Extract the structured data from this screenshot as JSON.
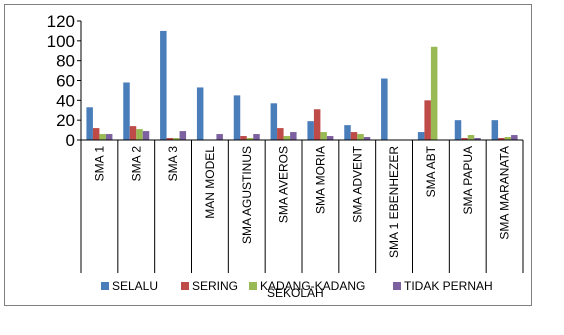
{
  "chart_data": {
    "type": "bar",
    "title": "",
    "xlabel": "SEKOLAH",
    "ylabel": "",
    "ylim": [
      0,
      120
    ],
    "yticks": [
      0,
      20,
      40,
      60,
      80,
      100,
      120
    ],
    "grid": false,
    "legend_position": "bottom",
    "categories": [
      "SMA 1",
      "SMA 2",
      "SMA 3",
      "MAN MODEL",
      "SMA AGUSTINUS",
      "SMA AVEROS",
      "SMA MORIA",
      "SMA ADVENT",
      "SMA 1 EBENHEZER",
      "SMA ABT",
      "SMA PAPUA",
      "SMA MARANATA"
    ],
    "series": [
      {
        "name": "SELALU",
        "color": "#4a7ebb",
        "values": [
          33,
          58,
          110,
          53,
          45,
          37,
          19,
          15,
          62,
          8,
          20,
          20
        ]
      },
      {
        "name": "SERING",
        "color": "#be4b48",
        "values": [
          12,
          14,
          2,
          0,
          4,
          12,
          31,
          8,
          0,
          40,
          2,
          2
        ]
      },
      {
        "name": "KADANG-KADANG",
        "color": "#98b954",
        "values": [
          6,
          11,
          2,
          0,
          2,
          4,
          8,
          6,
          0,
          94,
          5,
          3
        ]
      },
      {
        "name": "TIDAK PERNAH",
        "color": "#7d60a0",
        "values": [
          6,
          9,
          9,
          6,
          6,
          8,
          4,
          3,
          0,
          0,
          2,
          5
        ]
      }
    ]
  }
}
